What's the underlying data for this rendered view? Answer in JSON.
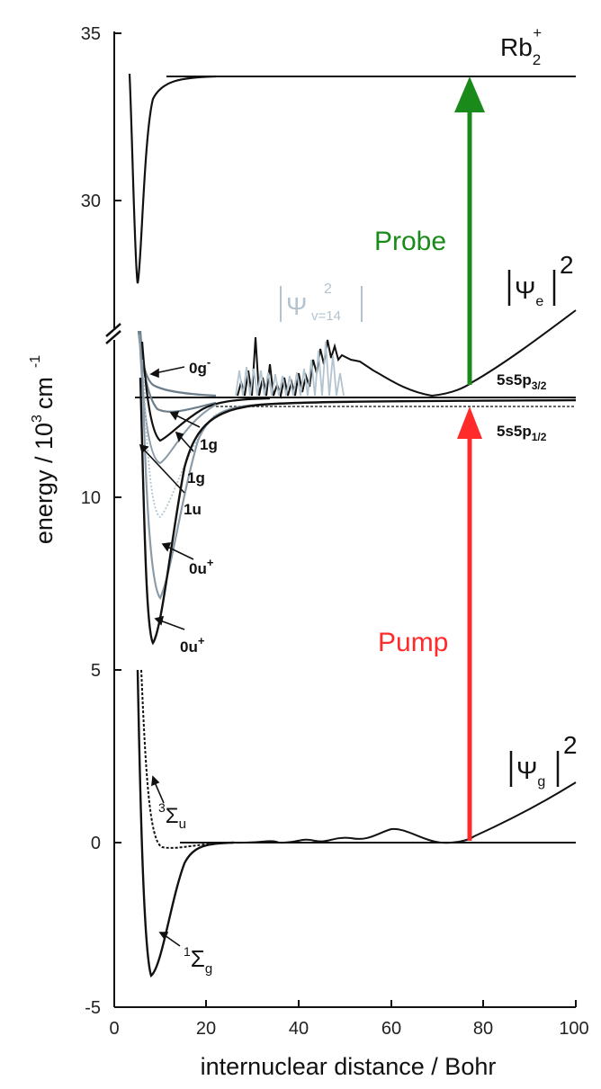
{
  "axes": {
    "xlabel": "internuclear distance / Bohr",
    "ylabel_main": "energy / 10",
    "ylabel_exp": "3",
    "ylabel_unit": "cm",
    "ylabel_unit_exp": "-1",
    "x_ticks": [
      "0",
      "20",
      "40",
      "60",
      "80",
      "100"
    ],
    "y_ticks_upper": [
      "35",
      "30"
    ],
    "y_ticks_lower": [
      "10",
      "5",
      "0",
      "-5"
    ],
    "x_range": [
      0,
      100
    ],
    "y_range_lower": [
      -5,
      13.5
    ],
    "y_range_upper": [
      27,
      35
    ],
    "axis_break": true
  },
  "labels": {
    "ion_main": "Rb",
    "ion_sub": "2",
    "ion_sup": "+",
    "psi_e_main": "Ψ",
    "psi_e_sub": "e",
    "psi_e_sup": "2",
    "psi_g_main": "Ψ",
    "psi_g_sub": "g",
    "psi_g_sup": "2",
    "psi_v_main": "Ψ",
    "psi_v_sub": "v=14",
    "psi_v_sup": "2",
    "asym_p32_main": "5s5p",
    "asym_p32_sub": "3/2",
    "asym_p12_main": "5s5p",
    "asym_p12_sub": "1/2",
    "curve_0g_main": "0g",
    "curve_0g_sup": "-",
    "curve_1g_a": "1g",
    "curve_1g_b": "1g",
    "curve_1u": "1u",
    "curve_0u_a_main": "0u",
    "curve_0u_a_sup": "+",
    "curve_0u_b_main": "0u",
    "curve_0u_b_sup": "+",
    "sigma_u_sup": "3",
    "sigma_u_main": "Σ",
    "sigma_u_sub": "u",
    "sigma_g_sup": "1",
    "sigma_g_main": "Σ",
    "sigma_g_sub": "g"
  },
  "arrows": {
    "probe_label": "Probe",
    "pump_label": "Pump",
    "probe_color": "#1a8a1a",
    "pump_color": "#ff2a2a",
    "x": 77
  },
  "colors": {
    "curve": "#111111",
    "curve_gray": "#6d7f8c",
    "curve_lightgray": "#b4c4cf"
  }
}
